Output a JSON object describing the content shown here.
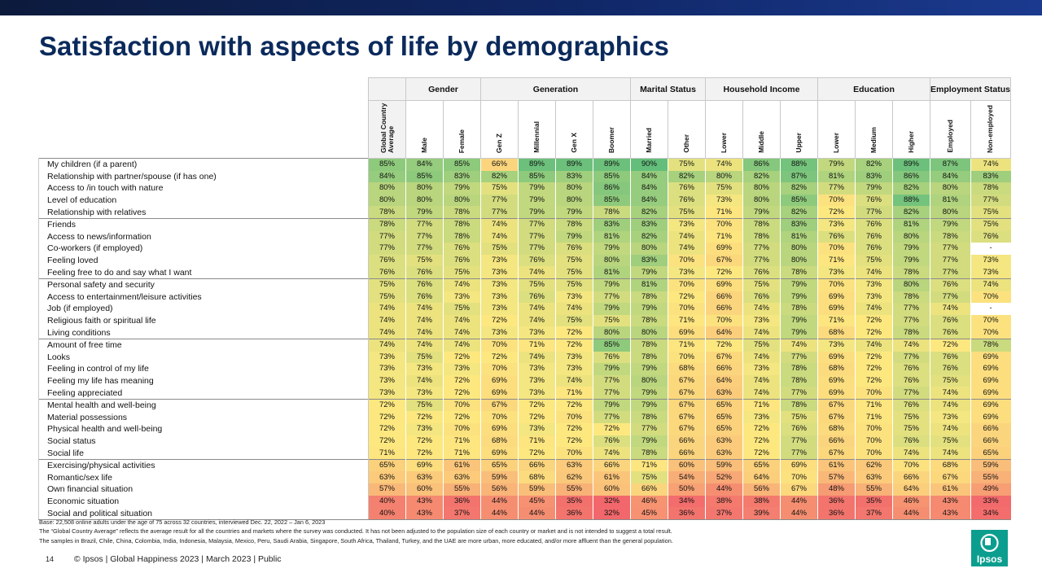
{
  "title": "Satisfaction with aspects of life by demographics",
  "groups": [
    {
      "label": "",
      "span": 1
    },
    {
      "label": "Gender",
      "span": 2
    },
    {
      "label": "Generation",
      "span": 4
    },
    {
      "label": "Marital Status",
      "span": 2
    },
    {
      "label": "Household Income",
      "span": 3
    },
    {
      "label": "Education",
      "span": 3
    },
    {
      "label": "Employment Status",
      "span": 2
    }
  ],
  "columns": [
    "Global Country Average",
    "Male",
    "Female",
    "Gen Z",
    "Millennial",
    "Gen X",
    "Boomer",
    "Married",
    "Other",
    "Lower",
    "Middle",
    "Upper",
    "Lower",
    "Medium",
    "Higher",
    "Employed",
    "Non-employed"
  ],
  "rows": [
    {
      "label": "My children (if a parent)",
      "values": [
        "85%",
        "84%",
        "85%",
        "66%",
        "89%",
        "89%",
        "89%",
        "90%",
        "75%",
        "74%",
        "86%",
        "88%",
        "79%",
        "82%",
        "89%",
        "87%",
        "74%"
      ]
    },
    {
      "label": "Relationship with partner/spouse (if has one)",
      "values": [
        "84%",
        "85%",
        "83%",
        "82%",
        "85%",
        "83%",
        "85%",
        "84%",
        "82%",
        "80%",
        "82%",
        "87%",
        "81%",
        "83%",
        "86%",
        "84%",
        "83%"
      ]
    },
    {
      "label": "Access to /in touch with nature",
      "values": [
        "80%",
        "80%",
        "79%",
        "75%",
        "79%",
        "80%",
        "86%",
        "84%",
        "76%",
        "75%",
        "80%",
        "82%",
        "77%",
        "79%",
        "82%",
        "80%",
        "78%"
      ]
    },
    {
      "label": "Level of education",
      "values": [
        "80%",
        "80%",
        "80%",
        "77%",
        "79%",
        "80%",
        "85%",
        "84%",
        "76%",
        "73%",
        "80%",
        "85%",
        "70%",
        "76%",
        "88%",
        "81%",
        "77%"
      ]
    },
    {
      "label": "Relationship with relatives",
      "values": [
        "78%",
        "79%",
        "78%",
        "77%",
        "79%",
        "79%",
        "78%",
        "82%",
        "75%",
        "71%",
        "79%",
        "82%",
        "72%",
        "77%",
        "82%",
        "80%",
        "75%"
      ]
    },
    {
      "label": "Friends",
      "values": [
        "78%",
        "77%",
        "78%",
        "74%",
        "77%",
        "78%",
        "83%",
        "83%",
        "73%",
        "70%",
        "78%",
        "83%",
        "73%",
        "76%",
        "81%",
        "79%",
        "75%"
      ]
    },
    {
      "label": "Access to news/information",
      "values": [
        "77%",
        "77%",
        "78%",
        "74%",
        "77%",
        "79%",
        "81%",
        "82%",
        "74%",
        "71%",
        "78%",
        "81%",
        "76%",
        "76%",
        "80%",
        "78%",
        "76%"
      ]
    },
    {
      "label": "Co-workers (if employed)",
      "values": [
        "77%",
        "77%",
        "76%",
        "75%",
        "77%",
        "76%",
        "79%",
        "80%",
        "74%",
        "69%",
        "77%",
        "80%",
        "70%",
        "76%",
        "79%",
        "77%",
        "-"
      ]
    },
    {
      "label": "Feeling loved",
      "values": [
        "76%",
        "75%",
        "76%",
        "73%",
        "76%",
        "75%",
        "80%",
        "83%",
        "70%",
        "67%",
        "77%",
        "80%",
        "71%",
        "75%",
        "79%",
        "77%",
        "73%"
      ]
    },
    {
      "label": "Feeling free to do and say what I want",
      "values": [
        "76%",
        "76%",
        "75%",
        "73%",
        "74%",
        "75%",
        "81%",
        "79%",
        "73%",
        "72%",
        "76%",
        "78%",
        "73%",
        "74%",
        "78%",
        "77%",
        "73%"
      ]
    },
    {
      "label": "Personal safety and security",
      "values": [
        "75%",
        "76%",
        "74%",
        "73%",
        "75%",
        "75%",
        "79%",
        "81%",
        "70%",
        "69%",
        "75%",
        "79%",
        "70%",
        "73%",
        "80%",
        "76%",
        "74%"
      ]
    },
    {
      "label": "Access to entertainment/leisure activities",
      "values": [
        "75%",
        "76%",
        "73%",
        "73%",
        "76%",
        "73%",
        "77%",
        "78%",
        "72%",
        "66%",
        "76%",
        "79%",
        "69%",
        "73%",
        "78%",
        "77%",
        "70%"
      ]
    },
    {
      "label": "Job (if employed)",
      "values": [
        "74%",
        "74%",
        "75%",
        "73%",
        "74%",
        "74%",
        "79%",
        "79%",
        "70%",
        "66%",
        "74%",
        "78%",
        "69%",
        "74%",
        "77%",
        "74%",
        "-"
      ]
    },
    {
      "label": "Religious faith or spiritual life",
      "values": [
        "74%",
        "74%",
        "74%",
        "72%",
        "74%",
        "75%",
        "75%",
        "78%",
        "71%",
        "70%",
        "73%",
        "79%",
        "71%",
        "72%",
        "77%",
        "76%",
        "70%"
      ]
    },
    {
      "label": "Living conditions",
      "values": [
        "74%",
        "74%",
        "74%",
        "73%",
        "73%",
        "72%",
        "80%",
        "80%",
        "69%",
        "64%",
        "74%",
        "79%",
        "68%",
        "72%",
        "78%",
        "76%",
        "70%"
      ]
    },
    {
      "label": "Amount of free time",
      "values": [
        "74%",
        "74%",
        "74%",
        "70%",
        "71%",
        "72%",
        "85%",
        "78%",
        "71%",
        "72%",
        "75%",
        "74%",
        "73%",
        "74%",
        "74%",
        "72%",
        "78%"
      ]
    },
    {
      "label": "Looks",
      "values": [
        "73%",
        "75%",
        "72%",
        "72%",
        "74%",
        "73%",
        "76%",
        "78%",
        "70%",
        "67%",
        "74%",
        "77%",
        "69%",
        "72%",
        "77%",
        "76%",
        "69%"
      ]
    },
    {
      "label": "Feeling in control of my life",
      "values": [
        "73%",
        "73%",
        "73%",
        "70%",
        "73%",
        "73%",
        "79%",
        "79%",
        "68%",
        "66%",
        "73%",
        "78%",
        "68%",
        "72%",
        "76%",
        "76%",
        "69%"
      ]
    },
    {
      "label": "Feeling my life has meaning",
      "values": [
        "73%",
        "74%",
        "72%",
        "69%",
        "73%",
        "74%",
        "77%",
        "80%",
        "67%",
        "64%",
        "74%",
        "78%",
        "69%",
        "72%",
        "76%",
        "75%",
        "69%"
      ]
    },
    {
      "label": "Feeling appreciated",
      "values": [
        "73%",
        "73%",
        "72%",
        "69%",
        "73%",
        "71%",
        "77%",
        "79%",
        "67%",
        "63%",
        "74%",
        "77%",
        "69%",
        "70%",
        "77%",
        "74%",
        "69%"
      ]
    },
    {
      "label": "Mental health and well-being",
      "values": [
        "72%",
        "75%",
        "70%",
        "67%",
        "72%",
        "72%",
        "79%",
        "79%",
        "67%",
        "65%",
        "71%",
        "78%",
        "67%",
        "71%",
        "76%",
        "74%",
        "69%"
      ]
    },
    {
      "label": "Material possessions",
      "values": [
        "72%",
        "72%",
        "72%",
        "70%",
        "72%",
        "70%",
        "77%",
        "78%",
        "67%",
        "65%",
        "73%",
        "75%",
        "67%",
        "71%",
        "75%",
        "73%",
        "69%"
      ]
    },
    {
      "label": "Physical health and well-being",
      "values": [
        "72%",
        "73%",
        "70%",
        "69%",
        "73%",
        "72%",
        "72%",
        "77%",
        "67%",
        "65%",
        "72%",
        "76%",
        "68%",
        "70%",
        "75%",
        "74%",
        "66%"
      ]
    },
    {
      "label": "Social status",
      "values": [
        "72%",
        "72%",
        "71%",
        "68%",
        "71%",
        "72%",
        "76%",
        "79%",
        "66%",
        "63%",
        "72%",
        "77%",
        "66%",
        "70%",
        "76%",
        "75%",
        "66%"
      ]
    },
    {
      "label": "Social life",
      "values": [
        "71%",
        "72%",
        "71%",
        "69%",
        "72%",
        "70%",
        "74%",
        "78%",
        "66%",
        "63%",
        "72%",
        "77%",
        "67%",
        "70%",
        "74%",
        "74%",
        "65%"
      ]
    },
    {
      "label": "Exercising/physical activities",
      "values": [
        "65%",
        "69%",
        "61%",
        "65%",
        "66%",
        "63%",
        "66%",
        "71%",
        "60%",
        "59%",
        "65%",
        "69%",
        "61%",
        "62%",
        "70%",
        "68%",
        "59%"
      ]
    },
    {
      "label": "Romantic/sex life",
      "values": [
        "63%",
        "63%",
        "63%",
        "59%",
        "68%",
        "62%",
        "61%",
        "75%",
        "54%",
        "52%",
        "64%",
        "70%",
        "57%",
        "63%",
        "66%",
        "67%",
        "55%"
      ]
    },
    {
      "label": "Own financial situation",
      "values": [
        "57%",
        "60%",
        "55%",
        "56%",
        "59%",
        "55%",
        "60%",
        "66%",
        "50%",
        "44%",
        "56%",
        "67%",
        "48%",
        "55%",
        "64%",
        "61%",
        "49%"
      ]
    },
    {
      "label": "Economic situation",
      "values": [
        "40%",
        "43%",
        "36%",
        "44%",
        "45%",
        "35%",
        "32%",
        "46%",
        "34%",
        "38%",
        "38%",
        "44%",
        "36%",
        "35%",
        "46%",
        "43%",
        "33%"
      ]
    },
    {
      "label": "Social and political situation",
      "values": [
        "40%",
        "43%",
        "37%",
        "44%",
        "44%",
        "36%",
        "32%",
        "45%",
        "36%",
        "37%",
        "39%",
        "44%",
        "36%",
        "37%",
        "44%",
        "43%",
        "34%"
      ]
    }
  ],
  "notes": [
    "Base: 22,508 online adults under the age of 75 across 32 countries, interviewed Dec. 22, 2022 – Jan 6, 2023",
    "The “Global Country Average” reflects the average result for all the countries and markets where the survey was conducted. It has not been adjusted to the population size of each country or market and is not intended to suggest a total result.",
    "The samples in Brazil, Chile, China, Colombia, India, Indonesia, Malaysia, Mexico, Peru, Saudi Arabia, Singapore, South Africa, Thailand, Turkey, and the UAE are more urban, more educated, and/or more affluent than the general population."
  ],
  "footer": {
    "page_number": "14",
    "text": "© Ipsos | Global Happiness 2023 | March 2023 | Public"
  },
  "logo": {
    "text": "Ipsos",
    "color": "#0b9e8f"
  },
  "colors": {
    "low": "#f2676b",
    "mid": "#fde880",
    "high": "#63be7b",
    "header_bar": "#102766",
    "title": "#0b2a5c"
  }
}
